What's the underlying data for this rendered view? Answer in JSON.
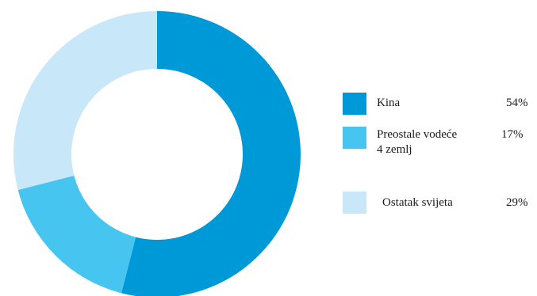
{
  "chart_data": {
    "type": "pie",
    "donut": true,
    "categories": [
      "Kina",
      "Preostale vodeće 4 zemlj",
      "Ostatak svijeta"
    ],
    "values": [
      54,
      17,
      29
    ],
    "value_labels": [
      "54%",
      "17%",
      "29%"
    ],
    "colors": [
      "#0099d8",
      "#47c5f1",
      "#c8e8f9"
    ],
    "legend_position": "right"
  },
  "legend": [
    {
      "label_line1": "Kina",
      "label_line2": "",
      "value": "54%",
      "color": "#0099d8"
    },
    {
      "label_line1": "Preostale vodeće",
      "label_line2": "4 zemlj",
      "value": "17%",
      "color": "#47c5f1"
    },
    {
      "label_line1": "Ostatak svijeta",
      "label_line2": "",
      "value": "29%",
      "color": "#c8e8f9"
    }
  ]
}
